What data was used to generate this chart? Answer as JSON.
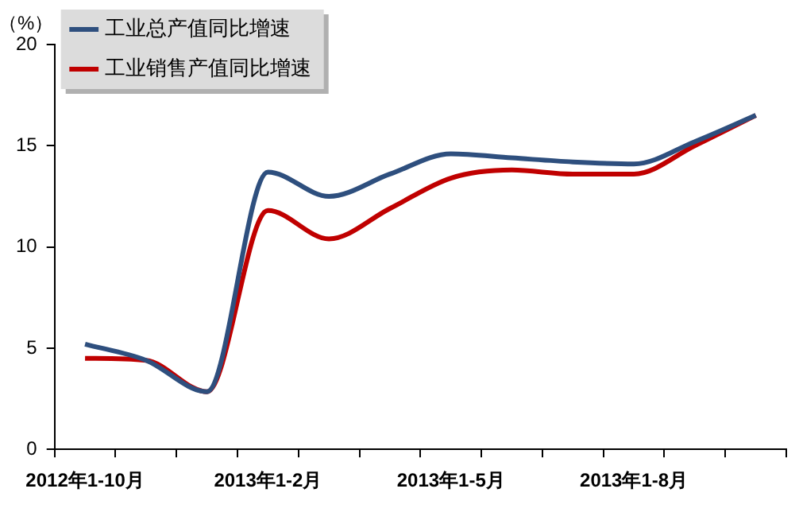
{
  "chart_data": {
    "type": "line",
    "ylabel": "（%）",
    "categories": [
      "2012年1-10月",
      null,
      null,
      "2013年1-2月",
      null,
      null,
      "2013年1-5月",
      null,
      null,
      "2013年1-8月",
      null,
      null
    ],
    "series": [
      {
        "name": "工业总产值同比增速",
        "color": "#2e4f7e",
        "values": [
          5.2,
          4.4,
          2.85,
          13.7,
          12.5,
          13.6,
          14.6,
          14.4,
          14.2,
          14.1,
          15.2,
          16.5
        ]
      },
      {
        "name": "工业销售产值同比增速",
        "color": "#c00000",
        "values": [
          4.5,
          4.4,
          2.85,
          11.8,
          10.4,
          11.9,
          13.4,
          13.8,
          13.6,
          13.6,
          15.0,
          16.5
        ]
      }
    ],
    "ylim": [
      0,
      20
    ],
    "yticks": [
      0,
      5,
      10,
      15,
      20
    ],
    "grid": false,
    "legend": "top left",
    "marker": "none",
    "line_style": "solid"
  }
}
